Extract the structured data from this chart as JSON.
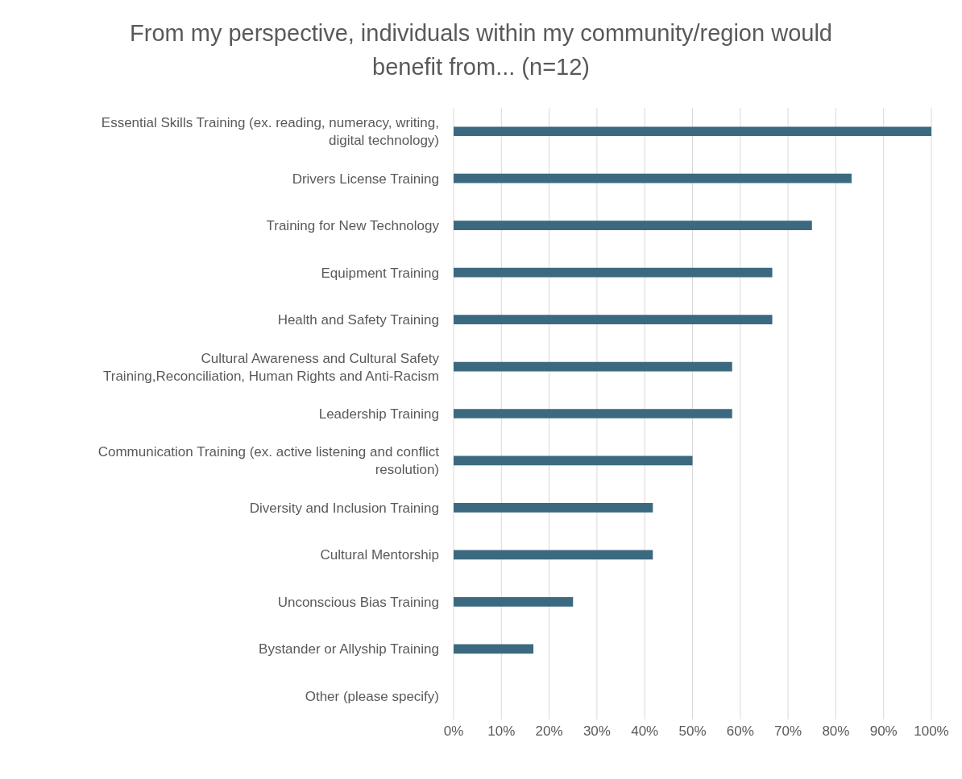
{
  "chart_data": {
    "type": "bar",
    "orientation": "horizontal",
    "title": "From my perspective, individuals within my community/region would benefit from... (n=12)",
    "categories": [
      "Essential Skills Training (ex. reading, numeracy, writing, digital technology)",
      "Drivers License Training",
      "Training for New Technology",
      "Equipment Training",
      "Health and Safety Training",
      "Cultural Awareness and Cultural Safety Training,Reconciliation, Human Rights and Anti-Racism",
      "Leadership Training",
      "Communication Training (ex. active listening and conflict resolution)",
      "Diversity and Inclusion Training",
      "Cultural Mentorship",
      "Unconscious Bias Training",
      "Bystander or Allyship Training",
      "Other (please specify)"
    ],
    "values": [
      100,
      83.3,
      75,
      66.7,
      66.7,
      58.3,
      58.3,
      50,
      41.7,
      41.7,
      25,
      16.7,
      0
    ],
    "color": "#3b6a80",
    "xlim": [
      0,
      100
    ],
    "xticks": [
      {
        "value": 0,
        "label": "0%"
      },
      {
        "value": 10,
        "label": "10%"
      },
      {
        "value": 20,
        "label": "20%"
      },
      {
        "value": 30,
        "label": "30%"
      },
      {
        "value": 40,
        "label": "40%"
      },
      {
        "value": 50,
        "label": "50%"
      },
      {
        "value": 60,
        "label": "60%"
      },
      {
        "value": 70,
        "label": "70%"
      },
      {
        "value": 80,
        "label": "80%"
      },
      {
        "value": 90,
        "label": "90%"
      },
      {
        "value": 100,
        "label": "100%"
      }
    ],
    "grid": "x"
  }
}
